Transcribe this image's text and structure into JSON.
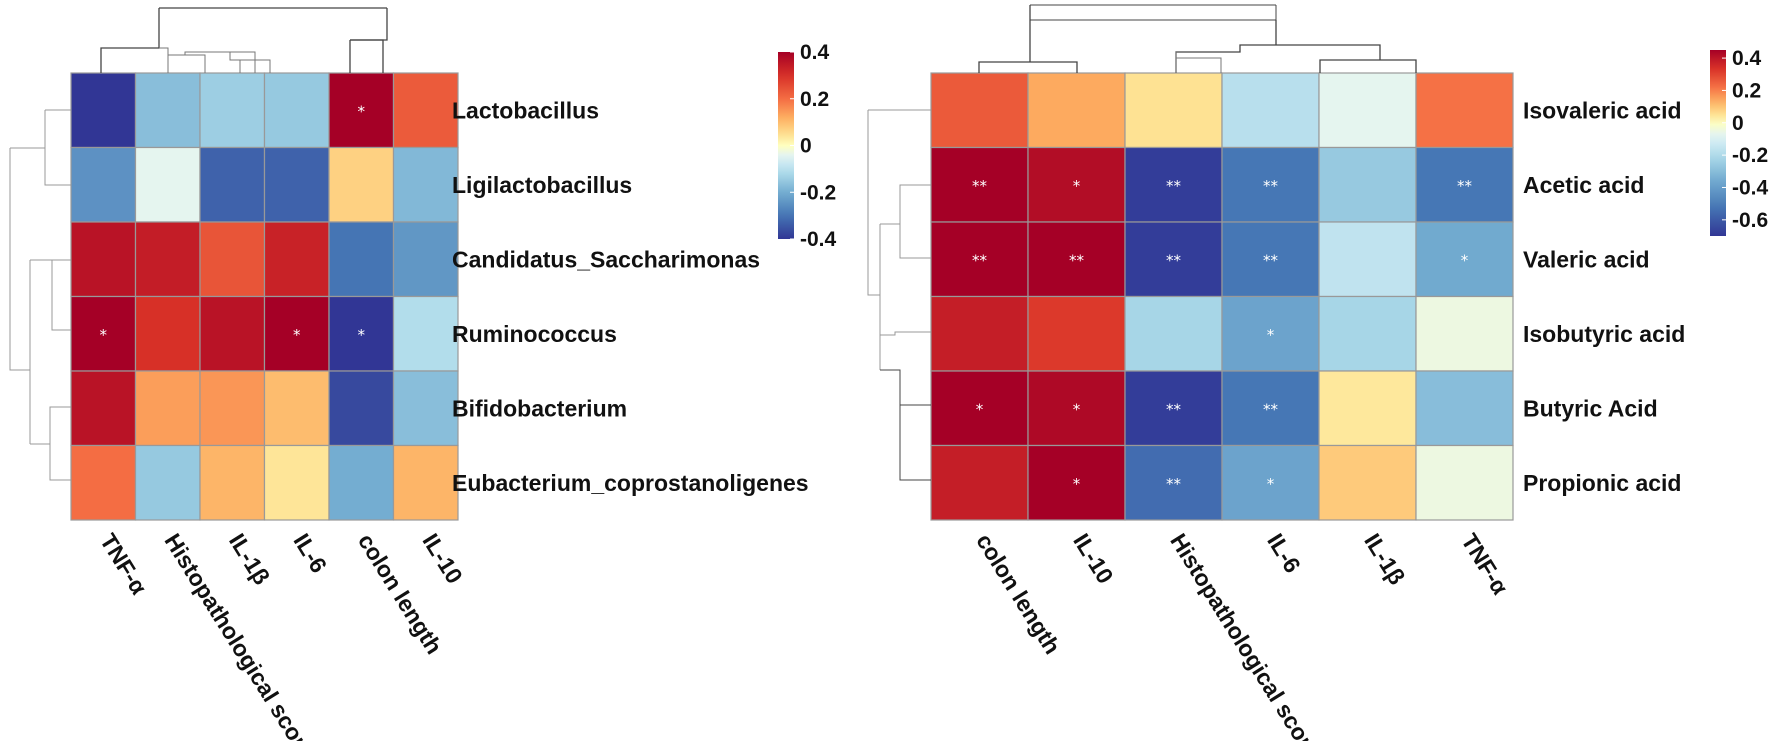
{
  "chart_data": [
    {
      "type": "heatmap",
      "title": "",
      "rows": [
        "Lactobacillus",
        "Ligilactobacillus",
        "Candidatus_Saccharimonas",
        "Ruminococcus",
        "Bifidobacterium",
        "Eubacterium_coprostanoligenes"
      ],
      "columns": [
        "TNF-α",
        "Histopathological score",
        "IL-1β",
        "IL-6",
        "colon length",
        "IL-10"
      ],
      "values": [
        [
          -0.4,
          -0.17,
          -0.14,
          -0.15,
          0.4,
          0.23
        ],
        [
          -0.25,
          -0.04,
          -0.33,
          -0.33,
          0.07,
          -0.18
        ],
        [
          0.36,
          0.34,
          0.24,
          0.33,
          -0.3,
          -0.24
        ],
        [
          0.4,
          0.3,
          0.36,
          0.4,
          -0.4,
          -0.11
        ],
        [
          0.36,
          0.14,
          0.15,
          0.1,
          -0.37,
          -0.17
        ],
        [
          0.2,
          -0.15,
          0.11,
          0.04,
          -0.2,
          0.11
        ]
      ],
      "significance": [
        [
          "",
          "",
          "",
          "",
          "*",
          ""
        ],
        [
          "",
          "",
          "",
          "",
          "",
          ""
        ],
        [
          "",
          "",
          "",
          "",
          "",
          ""
        ],
        [
          "*",
          "",
          "",
          "*",
          "*",
          ""
        ],
        [
          "",
          "",
          "",
          "",
          "",
          ""
        ],
        [
          "",
          "",
          "",
          "",
          "",
          ""
        ]
      ],
      "colorbar": {
        "min": -0.4,
        "max": 0.4,
        "ticks": [
          "0.4",
          "0.2",
          "0",
          "-0.2",
          "-0.4"
        ]
      }
    },
    {
      "type": "heatmap",
      "title": "",
      "rows": [
        "Isovaleric acid",
        "Acetic acid",
        "Valeric acid",
        "Isobutyric acid",
        "Butyric Acid",
        "Propionic acid"
      ],
      "columns": [
        "colon length",
        "IL-10",
        "Histopathological score",
        "IL-6",
        "IL-1β",
        "TNF-α"
      ],
      "values": [
        [
          0.26,
          0.14,
          0.05,
          -0.18,
          -0.07,
          0.22
        ],
        [
          0.45,
          0.42,
          -0.68,
          -0.52,
          -0.26,
          -0.52
        ],
        [
          0.45,
          0.45,
          -0.68,
          -0.52,
          -0.16,
          -0.36
        ],
        [
          0.38,
          0.32,
          -0.22,
          -0.38,
          -0.22,
          -0.05
        ],
        [
          0.45,
          0.43,
          -0.68,
          -0.52,
          0.04,
          -0.3
        ],
        [
          0.38,
          0.45,
          -0.55,
          -0.38,
          0.09,
          -0.05
        ]
      ],
      "significance": [
        [
          "",
          "",
          "",
          "",
          "",
          ""
        ],
        [
          "**",
          "*",
          "**",
          "**",
          "",
          "**"
        ],
        [
          "**",
          "**",
          "**",
          "**",
          "",
          "*"
        ],
        [
          "",
          "",
          "",
          "*",
          "",
          ""
        ],
        [
          "*",
          "*",
          "**",
          "**",
          "",
          ""
        ],
        [
          "",
          "*",
          "**",
          "*",
          "",
          ""
        ]
      ],
      "colorbar": {
        "min": -0.7,
        "max": 0.45,
        "ticks": [
          "0.4",
          "0.2",
          "0",
          "-0.2",
          "-0.4",
          "-0.6"
        ]
      }
    }
  ],
  "palette": {
    "low": "#313695",
    "lowmid": "#4575b4",
    "mid_low": "#74add1",
    "light_blue": "#abd9e9",
    "pale": "#e0f3f8",
    "neutral": "#ffffbf",
    "peach": "#fee090",
    "orange": "#fdae61",
    "orange_red": "#f46d43",
    "red": "#d73027",
    "high": "#a50026",
    "grid": "#999999",
    "tree": "#444444"
  }
}
